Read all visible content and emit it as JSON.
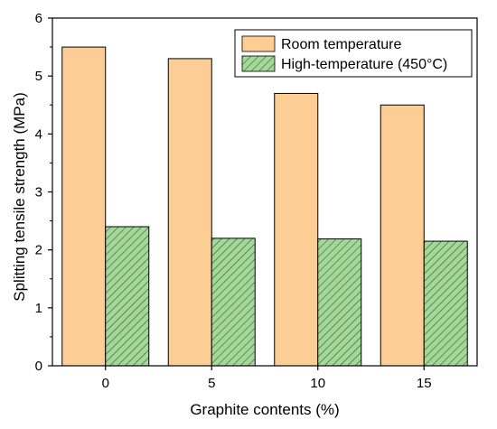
{
  "chart_data": {
    "type": "bar",
    "title": "",
    "xlabel": "Graphite contents (%)",
    "ylabel": "Splitting tensile strength (MPa)",
    "categories": [
      "0",
      "5",
      "10",
      "15"
    ],
    "ylim": [
      0,
      6
    ],
    "yticks": [
      "0",
      "1",
      "2",
      "3",
      "4",
      "5",
      "6"
    ],
    "grid": false,
    "legend_position": "top-right",
    "series": [
      {
        "name": "Room temperature",
        "values": [
          5.5,
          5.3,
          4.7,
          4.5
        ],
        "color": "#FDCD96",
        "pattern": "solid"
      },
      {
        "name": "High-temperature (450°C)",
        "values": [
          2.4,
          2.2,
          2.19,
          2.15
        ],
        "color": "#A4D89A",
        "pattern": "diagonal-hatch"
      }
    ]
  }
}
